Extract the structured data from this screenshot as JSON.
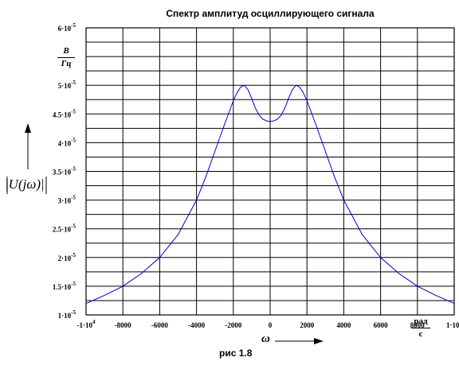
{
  "chart_data": {
    "type": "line",
    "title": "Спектр амплитуд осциллирующего сигнала",
    "caption": "рис 1.8",
    "ylabel": "|U(jω)|",
    "yunit": {
      "numerator": "B",
      "denominator": "Гц"
    },
    "xlabel": "ω",
    "xunit": {
      "numerator": "рад",
      "denominator": "с"
    },
    "xlim": [
      -10000,
      10000
    ],
    "ylim": [
      1e-05,
      6e-05
    ],
    "grid": true,
    "x_ticks": [
      {
        "value": -10000,
        "label": "-1·10",
        "exp": "4"
      },
      {
        "value": -8000,
        "label": "-8000",
        "exp": ""
      },
      {
        "value": -6000,
        "label": "-6000",
        "exp": ""
      },
      {
        "value": -4000,
        "label": "-4000",
        "exp": ""
      },
      {
        "value": -2000,
        "label": "-2000",
        "exp": ""
      },
      {
        "value": 0,
        "label": "0",
        "exp": ""
      },
      {
        "value": 2000,
        "label": "2000",
        "exp": ""
      },
      {
        "value": 4000,
        "label": "4000",
        "exp": ""
      },
      {
        "value": 6000,
        "label": "6000",
        "exp": ""
      },
      {
        "value": 8000,
        "label": "8000",
        "exp": ""
      },
      {
        "value": 10000,
        "label": "1·10",
        "exp": "4"
      }
    ],
    "y_ticks": [
      {
        "value": 1e-05,
        "label": "1·10",
        "exp": "-5"
      },
      {
        "value": 1.5e-05,
        "label": "1.5·10",
        "exp": "-5"
      },
      {
        "value": 2e-05,
        "label": "2·10",
        "exp": "-5"
      },
      {
        "value": 2.5e-05,
        "label": "2.5·10",
        "exp": "-5"
      },
      {
        "value": 3e-05,
        "label": "3·10",
        "exp": "-5"
      },
      {
        "value": 3.5e-05,
        "label": "3.5·10",
        "exp": "-5"
      },
      {
        "value": 4e-05,
        "label": "4·10",
        "exp": "-5"
      },
      {
        "value": 4.5e-05,
        "label": "4.5·10",
        "exp": "-5"
      },
      {
        "value": 5e-05,
        "label": "5·10",
        "exp": "-5"
      },
      {
        "value": 6e-05,
        "label": "6·10",
        "exp": "-5"
      }
    ],
    "series": [
      {
        "color": "#0000cc",
        "x": [
          -10000,
          -9000,
          -8000,
          -7000,
          -6000,
          -5000,
          -4000,
          -3500,
          -3000,
          -2500,
          -2000,
          -1800,
          -1600,
          -1400,
          -1200,
          -1000,
          -800,
          -600,
          -400,
          -200,
          0,
          200,
          400,
          600,
          800,
          1000,
          1200,
          1400,
          1600,
          1800,
          2000,
          2500,
          3000,
          3500,
          4000,
          5000,
          6000,
          7000,
          8000,
          9000,
          10000
        ],
        "y": [
          1.2e-05,
          1.34e-05,
          1.5e-05,
          1.72e-05,
          2e-05,
          2.4e-05,
          3e-05,
          3.4e-05,
          3.85e-05,
          4.3e-05,
          4.73e-05,
          4.87e-05,
          4.97e-05,
          5e-05,
          4.92e-05,
          4.77e-05,
          4.6e-05,
          4.48e-05,
          4.41e-05,
          4.38e-05,
          4.37e-05,
          4.38e-05,
          4.41e-05,
          4.48e-05,
          4.6e-05,
          4.77e-05,
          4.92e-05,
          5e-05,
          4.97e-05,
          4.87e-05,
          4.73e-05,
          4.3e-05,
          3.85e-05,
          3.4e-05,
          3e-05,
          2.4e-05,
          2e-05,
          1.72e-05,
          1.5e-05,
          1.34e-05,
          1.2e-05
        ]
      }
    ]
  }
}
